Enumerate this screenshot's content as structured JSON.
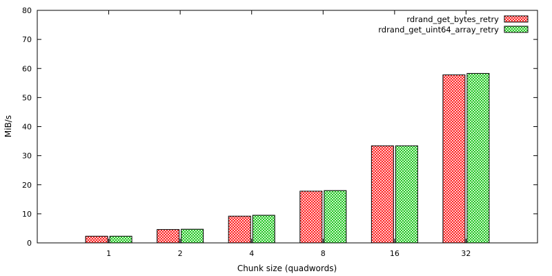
{
  "chart_data": {
    "type": "bar",
    "title": "",
    "xlabel": "Chunk size (quadwords)",
    "ylabel": "MiB/s",
    "ylim": [
      0,
      80
    ],
    "yticks": [
      0,
      10,
      20,
      30,
      40,
      50,
      60,
      70,
      80
    ],
    "categories": [
      "1",
      "2",
      "4",
      "8",
      "16",
      "32"
    ],
    "series": [
      {
        "name": "rdrand_get_bytes_retry",
        "values": [
          2.3,
          4.6,
          9.2,
          17.8,
          33.4,
          57.8
        ],
        "color": "#ff0000",
        "fill": "red-crosshatch"
      },
      {
        "name": "rdrand_get_uint64_array_retry",
        "values": [
          2.3,
          4.7,
          9.5,
          18.0,
          33.4,
          58.3
        ],
        "color": "#00c000",
        "fill": "green-crosshatch"
      }
    ],
    "legend_position": "top-right",
    "grid": false
  }
}
